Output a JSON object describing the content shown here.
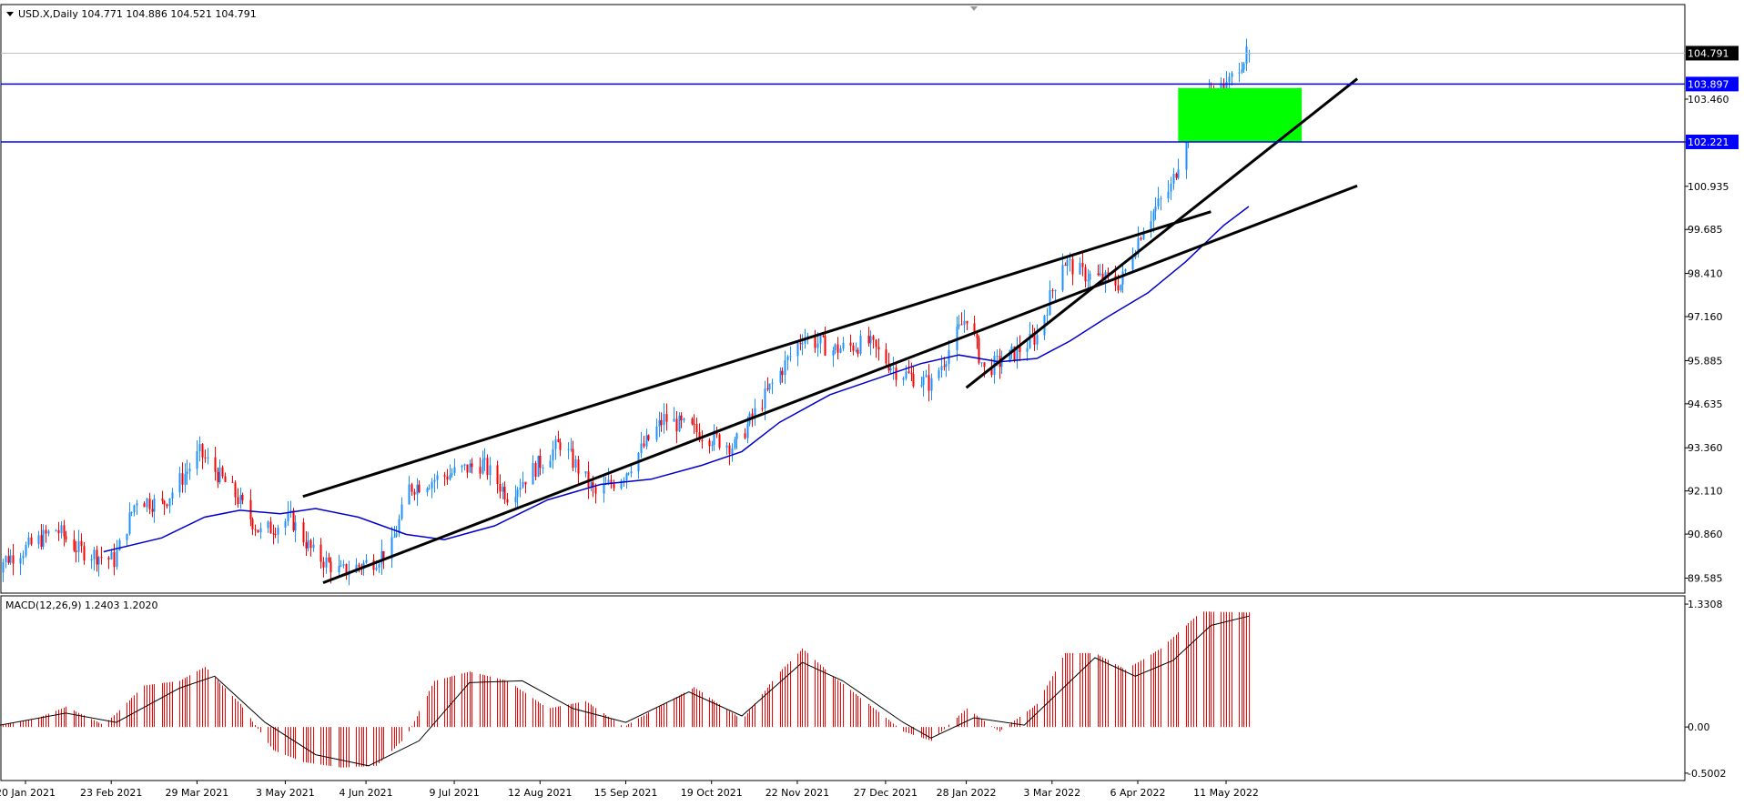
{
  "header": {
    "symbol_line": "USD.X,Daily  104.771 104.886 104.521 104.791",
    "macd_line": "MACD(12,26,9) 1.2403 1.2020"
  },
  "colors": {
    "background": "#ffffff",
    "frame": "#000000",
    "grid_tick": "#000000",
    "bull_candle": "#1e90ff",
    "bear_candle": "#ff0000",
    "moving_average": "#0000cd",
    "hline": "#0000ff",
    "channel": "#000000",
    "zone_fill": "#00ff00",
    "macd_hist": "#ff0000",
    "macd_signal": "#000000",
    "price_box_current": "#000000",
    "price_box_level": "#0000ff"
  },
  "chart_data": [
    {
      "type": "candlestick",
      "id": "price",
      "symbol": "USD.X",
      "timeframe": "Daily",
      "last_ohlc": {
        "open": 104.771,
        "high": 104.886,
        "low": 104.521,
        "close": 104.791
      },
      "y_ticks": [
        "103.460",
        "102.221",
        "100.935",
        "99.685",
        "98.410",
        "97.160",
        "95.885",
        "94.635",
        "93.360",
        "92.110",
        "90.860",
        "89.585"
      ],
      "y_tick_values": [
        103.46,
        102.221,
        100.935,
        99.685,
        98.41,
        97.16,
        95.885,
        94.635,
        93.36,
        92.11,
        90.86,
        89.585
      ],
      "ylim": [
        89.15,
        106.2
      ],
      "x_labels": [
        "20 Jan 2021",
        "23 Feb 2021",
        "29 Mar 2021",
        "3 May 2021",
        "4 Jun 2021",
        "9 Jul 2021",
        "12 Aug 2021",
        "15 Sep 2021",
        "19 Oct 2021",
        "22 Nov 2021",
        "27 Dec 2021",
        "28 Jan 2022",
        "3 Mar 2022",
        "6 Apr 2022",
        "11 May 2022"
      ],
      "current_price": "104.791",
      "horizontal_levels": [
        {
          "label": "103.897",
          "value": 103.897
        },
        {
          "label": "102.221",
          "value": 102.221
        }
      ],
      "zone": {
        "from_date": "2022-04-22",
        "to_date": "2022-06-10",
        "from_price": 102.22,
        "to_price": 103.78
      },
      "channel_lines": [
        {
          "from": {
            "date": "2021-05-10",
            "price": 91.95
          },
          "to": {
            "date": "2022-05-05",
            "price": 100.2
          }
        },
        {
          "from": {
            "date": "2021-05-18",
            "price": 89.45
          },
          "to": {
            "date": "2022-07-02",
            "price": 100.95
          }
        },
        {
          "from": {
            "date": "2022-01-28",
            "price": 95.1
          },
          "to": {
            "date": "2022-07-02",
            "price": 104.05
          }
        }
      ],
      "key_points": [
        {
          "date": "2021-01-06",
          "price": 89.9
        },
        {
          "date": "2021-01-20",
          "price": 90.45
        },
        {
          "date": "2021-02-01",
          "price": 91.0
        },
        {
          "date": "2021-02-10",
          "price": 90.4
        },
        {
          "date": "2021-02-24",
          "price": 90.1
        },
        {
          "date": "2021-03-05",
          "price": 91.9
        },
        {
          "date": "2021-03-15",
          "price": 91.7
        },
        {
          "date": "2021-03-30",
          "price": 93.2
        },
        {
          "date": "2021-04-12",
          "price": 92.1
        },
        {
          "date": "2021-04-23",
          "price": 90.9
        },
        {
          "date": "2021-05-05",
          "price": 91.3
        },
        {
          "date": "2021-05-14",
          "price": 90.3
        },
        {
          "date": "2021-05-25",
          "price": 89.75
        },
        {
          "date": "2021-06-07",
          "price": 90.1
        },
        {
          "date": "2021-06-14",
          "price": 90.5
        },
        {
          "date": "2021-06-21",
          "price": 92.2
        },
        {
          "date": "2021-07-07",
          "price": 92.6
        },
        {
          "date": "2021-07-20",
          "price": 92.9
        },
        {
          "date": "2021-07-30",
          "price": 92.0
        },
        {
          "date": "2021-08-20",
          "price": 93.5
        },
        {
          "date": "2021-09-03",
          "price": 92.0
        },
        {
          "date": "2021-09-14",
          "price": 92.6
        },
        {
          "date": "2021-09-30",
          "price": 94.2
        },
        {
          "date": "2021-10-14",
          "price": 93.8
        },
        {
          "date": "2021-10-28",
          "price": 93.4
        },
        {
          "date": "2021-11-12",
          "price": 95.2
        },
        {
          "date": "2021-11-24",
          "price": 96.6
        },
        {
          "date": "2021-12-06",
          "price": 96.2
        },
        {
          "date": "2021-12-20",
          "price": 96.4
        },
        {
          "date": "2021-12-31",
          "price": 95.6
        },
        {
          "date": "2022-01-14",
          "price": 95.2
        },
        {
          "date": "2022-01-28",
          "price": 97.2
        },
        {
          "date": "2022-02-04",
          "price": 95.6
        },
        {
          "date": "2022-02-14",
          "price": 96.0
        },
        {
          "date": "2022-02-25",
          "price": 96.6
        },
        {
          "date": "2022-03-07",
          "price": 98.8
        },
        {
          "date": "2022-03-15",
          "price": 98.4
        },
        {
          "date": "2022-03-30",
          "price": 98.1
        },
        {
          "date": "2022-04-08",
          "price": 99.8
        },
        {
          "date": "2022-04-19",
          "price": 100.9
        },
        {
          "date": "2022-04-28",
          "price": 103.2
        },
        {
          "date": "2022-05-05",
          "price": 103.6
        },
        {
          "date": "2022-05-11",
          "price": 103.8
        },
        {
          "date": "2022-05-16",
          "price": 104.5
        },
        {
          "date": "2022-05-20",
          "price": 104.79
        }
      ],
      "moving_average": [
        {
          "date": "2021-02-20",
          "value": 90.35
        },
        {
          "date": "2021-03-15",
          "value": 90.75
        },
        {
          "date": "2021-04-01",
          "value": 91.35
        },
        {
          "date": "2021-04-15",
          "value": 91.55
        },
        {
          "date": "2021-05-01",
          "value": 91.45
        },
        {
          "date": "2021-05-15",
          "value": 91.6
        },
        {
          "date": "2021-06-01",
          "value": 91.35
        },
        {
          "date": "2021-06-20",
          "value": 90.85
        },
        {
          "date": "2021-07-05",
          "value": 90.7
        },
        {
          "date": "2021-07-25",
          "value": 91.1
        },
        {
          "date": "2021-08-15",
          "value": 91.85
        },
        {
          "date": "2021-09-05",
          "value": 92.3
        },
        {
          "date": "2021-09-25",
          "value": 92.45
        },
        {
          "date": "2021-10-15",
          "value": 92.85
        },
        {
          "date": "2021-10-31",
          "value": 93.25
        },
        {
          "date": "2021-11-15",
          "value": 94.1
        },
        {
          "date": "2021-12-05",
          "value": 94.9
        },
        {
          "date": "2021-12-25",
          "value": 95.4
        },
        {
          "date": "2022-01-10",
          "value": 95.8
        },
        {
          "date": "2022-01-25",
          "value": 96.05
        },
        {
          "date": "2022-02-10",
          "value": 95.85
        },
        {
          "date": "2022-02-25",
          "value": 95.95
        },
        {
          "date": "2022-03-10",
          "value": 96.45
        },
        {
          "date": "2022-03-25",
          "value": 97.15
        },
        {
          "date": "2022-04-10",
          "value": 97.85
        },
        {
          "date": "2022-04-25",
          "value": 98.75
        },
        {
          "date": "2022-05-10",
          "value": 99.8
        },
        {
          "date": "2022-05-20",
          "value": 100.35
        }
      ]
    },
    {
      "type": "histogram",
      "id": "macd",
      "name": "MACD(12,26,9)",
      "main_value": 1.2403,
      "signal_value": 1.202,
      "y_ticks": [
        "1.3308",
        "0.00",
        "-0.5002"
      ],
      "y_tick_values": [
        1.3308,
        0.0,
        -0.5002
      ],
      "ylim": [
        -0.58,
        1.42
      ],
      "histogram_points": [
        {
          "date": "2021-01-06",
          "value": 0.0
        },
        {
          "date": "2021-01-25",
          "value": 0.1
        },
        {
          "date": "2021-02-05",
          "value": 0.22
        },
        {
          "date": "2021-02-20",
          "value": 0.02
        },
        {
          "date": "2021-03-08",
          "value": 0.45
        },
        {
          "date": "2021-03-22",
          "value": 0.5
        },
        {
          "date": "2021-04-01",
          "value": 0.65
        },
        {
          "date": "2021-04-15",
          "value": 0.25
        },
        {
          "date": "2021-04-28",
          "value": -0.25
        },
        {
          "date": "2021-05-10",
          "value": -0.38
        },
        {
          "date": "2021-05-25",
          "value": -0.44
        },
        {
          "date": "2021-06-08",
          "value": -0.42
        },
        {
          "date": "2021-06-20",
          "value": -0.1
        },
        {
          "date": "2021-07-01",
          "value": 0.5
        },
        {
          "date": "2021-07-15",
          "value": 0.6
        },
        {
          "date": "2021-07-30",
          "value": 0.5
        },
        {
          "date": "2021-08-15",
          "value": 0.2
        },
        {
          "date": "2021-08-30",
          "value": 0.28
        },
        {
          "date": "2021-09-14",
          "value": 0.0
        },
        {
          "date": "2021-09-28",
          "value": 0.22
        },
        {
          "date": "2021-10-12",
          "value": 0.43
        },
        {
          "date": "2021-10-31",
          "value": 0.08
        },
        {
          "date": "2021-11-15",
          "value": 0.6
        },
        {
          "date": "2021-11-24",
          "value": 0.85
        },
        {
          "date": "2021-12-06",
          "value": 0.55
        },
        {
          "date": "2021-12-20",
          "value": 0.25
        },
        {
          "date": "2022-01-03",
          "value": -0.05
        },
        {
          "date": "2022-01-14",
          "value": -0.15
        },
        {
          "date": "2022-01-28",
          "value": 0.2
        },
        {
          "date": "2022-02-10",
          "value": -0.05
        },
        {
          "date": "2022-02-25",
          "value": 0.25
        },
        {
          "date": "2022-03-08",
          "value": 0.8
        },
        {
          "date": "2022-03-20",
          "value": 0.8
        },
        {
          "date": "2022-04-01",
          "value": 0.62
        },
        {
          "date": "2022-04-15",
          "value": 0.85
        },
        {
          "date": "2022-05-01",
          "value": 1.25
        },
        {
          "date": "2022-05-20",
          "value": 1.24
        }
      ],
      "signal_points": [
        {
          "date": "2021-01-06",
          "value": 0.0
        },
        {
          "date": "2021-02-05",
          "value": 0.15
        },
        {
          "date": "2021-02-25",
          "value": 0.05
        },
        {
          "date": "2021-03-22",
          "value": 0.42
        },
        {
          "date": "2021-04-05",
          "value": 0.55
        },
        {
          "date": "2021-04-25",
          "value": 0.05
        },
        {
          "date": "2021-05-15",
          "value": -0.3
        },
        {
          "date": "2021-06-05",
          "value": -0.42
        },
        {
          "date": "2021-06-25",
          "value": -0.15
        },
        {
          "date": "2021-07-15",
          "value": 0.48
        },
        {
          "date": "2021-08-05",
          "value": 0.5
        },
        {
          "date": "2021-08-25",
          "value": 0.2
        },
        {
          "date": "2021-09-15",
          "value": 0.05
        },
        {
          "date": "2021-10-10",
          "value": 0.38
        },
        {
          "date": "2021-10-31",
          "value": 0.12
        },
        {
          "date": "2021-11-24",
          "value": 0.7
        },
        {
          "date": "2021-12-10",
          "value": 0.5
        },
        {
          "date": "2022-01-03",
          "value": 0.05
        },
        {
          "date": "2022-01-14",
          "value": -0.12
        },
        {
          "date": "2022-01-31",
          "value": 0.1
        },
        {
          "date": "2022-02-20",
          "value": 0.02
        },
        {
          "date": "2022-03-20",
          "value": 0.75
        },
        {
          "date": "2022-04-05",
          "value": 0.55
        },
        {
          "date": "2022-04-20",
          "value": 0.72
        },
        {
          "date": "2022-05-05",
          "value": 1.1
        },
        {
          "date": "2022-05-20",
          "value": 1.2
        }
      ]
    }
  ]
}
